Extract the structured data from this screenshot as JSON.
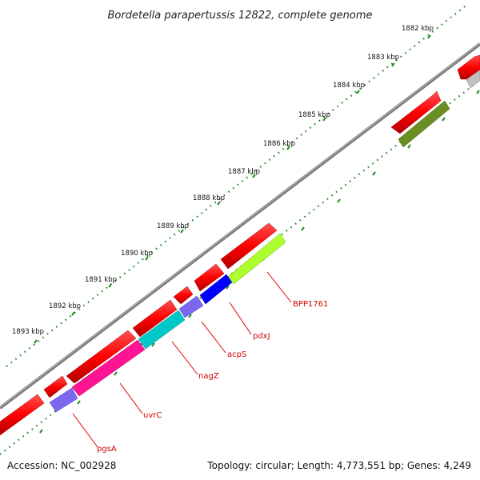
{
  "title": "Bordetella parapertussis 12822, complete genome",
  "footer": {
    "accession": "Accession: NC_002928",
    "summary": "Topology: circular; Length: 4,773,551 bp; Genes: 4,249"
  },
  "ruler": {
    "labels": [
      "1882 kbp",
      "1883 kbp",
      "1884 kbp",
      "1885 kbp",
      "1886 kbp",
      "1887 kbp",
      "1888 kbp",
      "1889 kbp",
      "1890 kbp",
      "1891 kbp",
      "1892 kbp",
      "1893 kbp"
    ]
  },
  "gene_labels": [
    "BPP1761",
    "pdxJ",
    "acpS",
    "nagZ",
    "uvrC",
    "pgsA"
  ],
  "colors": {
    "forward_strand": "#ff0000",
    "backbone": "#808080",
    "tick": "#228b22",
    "label": "#cc0000",
    "olive": "#6b8e23",
    "lime": "#adff2f",
    "blue": "#0000ff",
    "purple": "#7b68ee",
    "cyan": "#00c8c8",
    "magenta": "#ff1493",
    "gray": "#c0c0c0"
  }
}
